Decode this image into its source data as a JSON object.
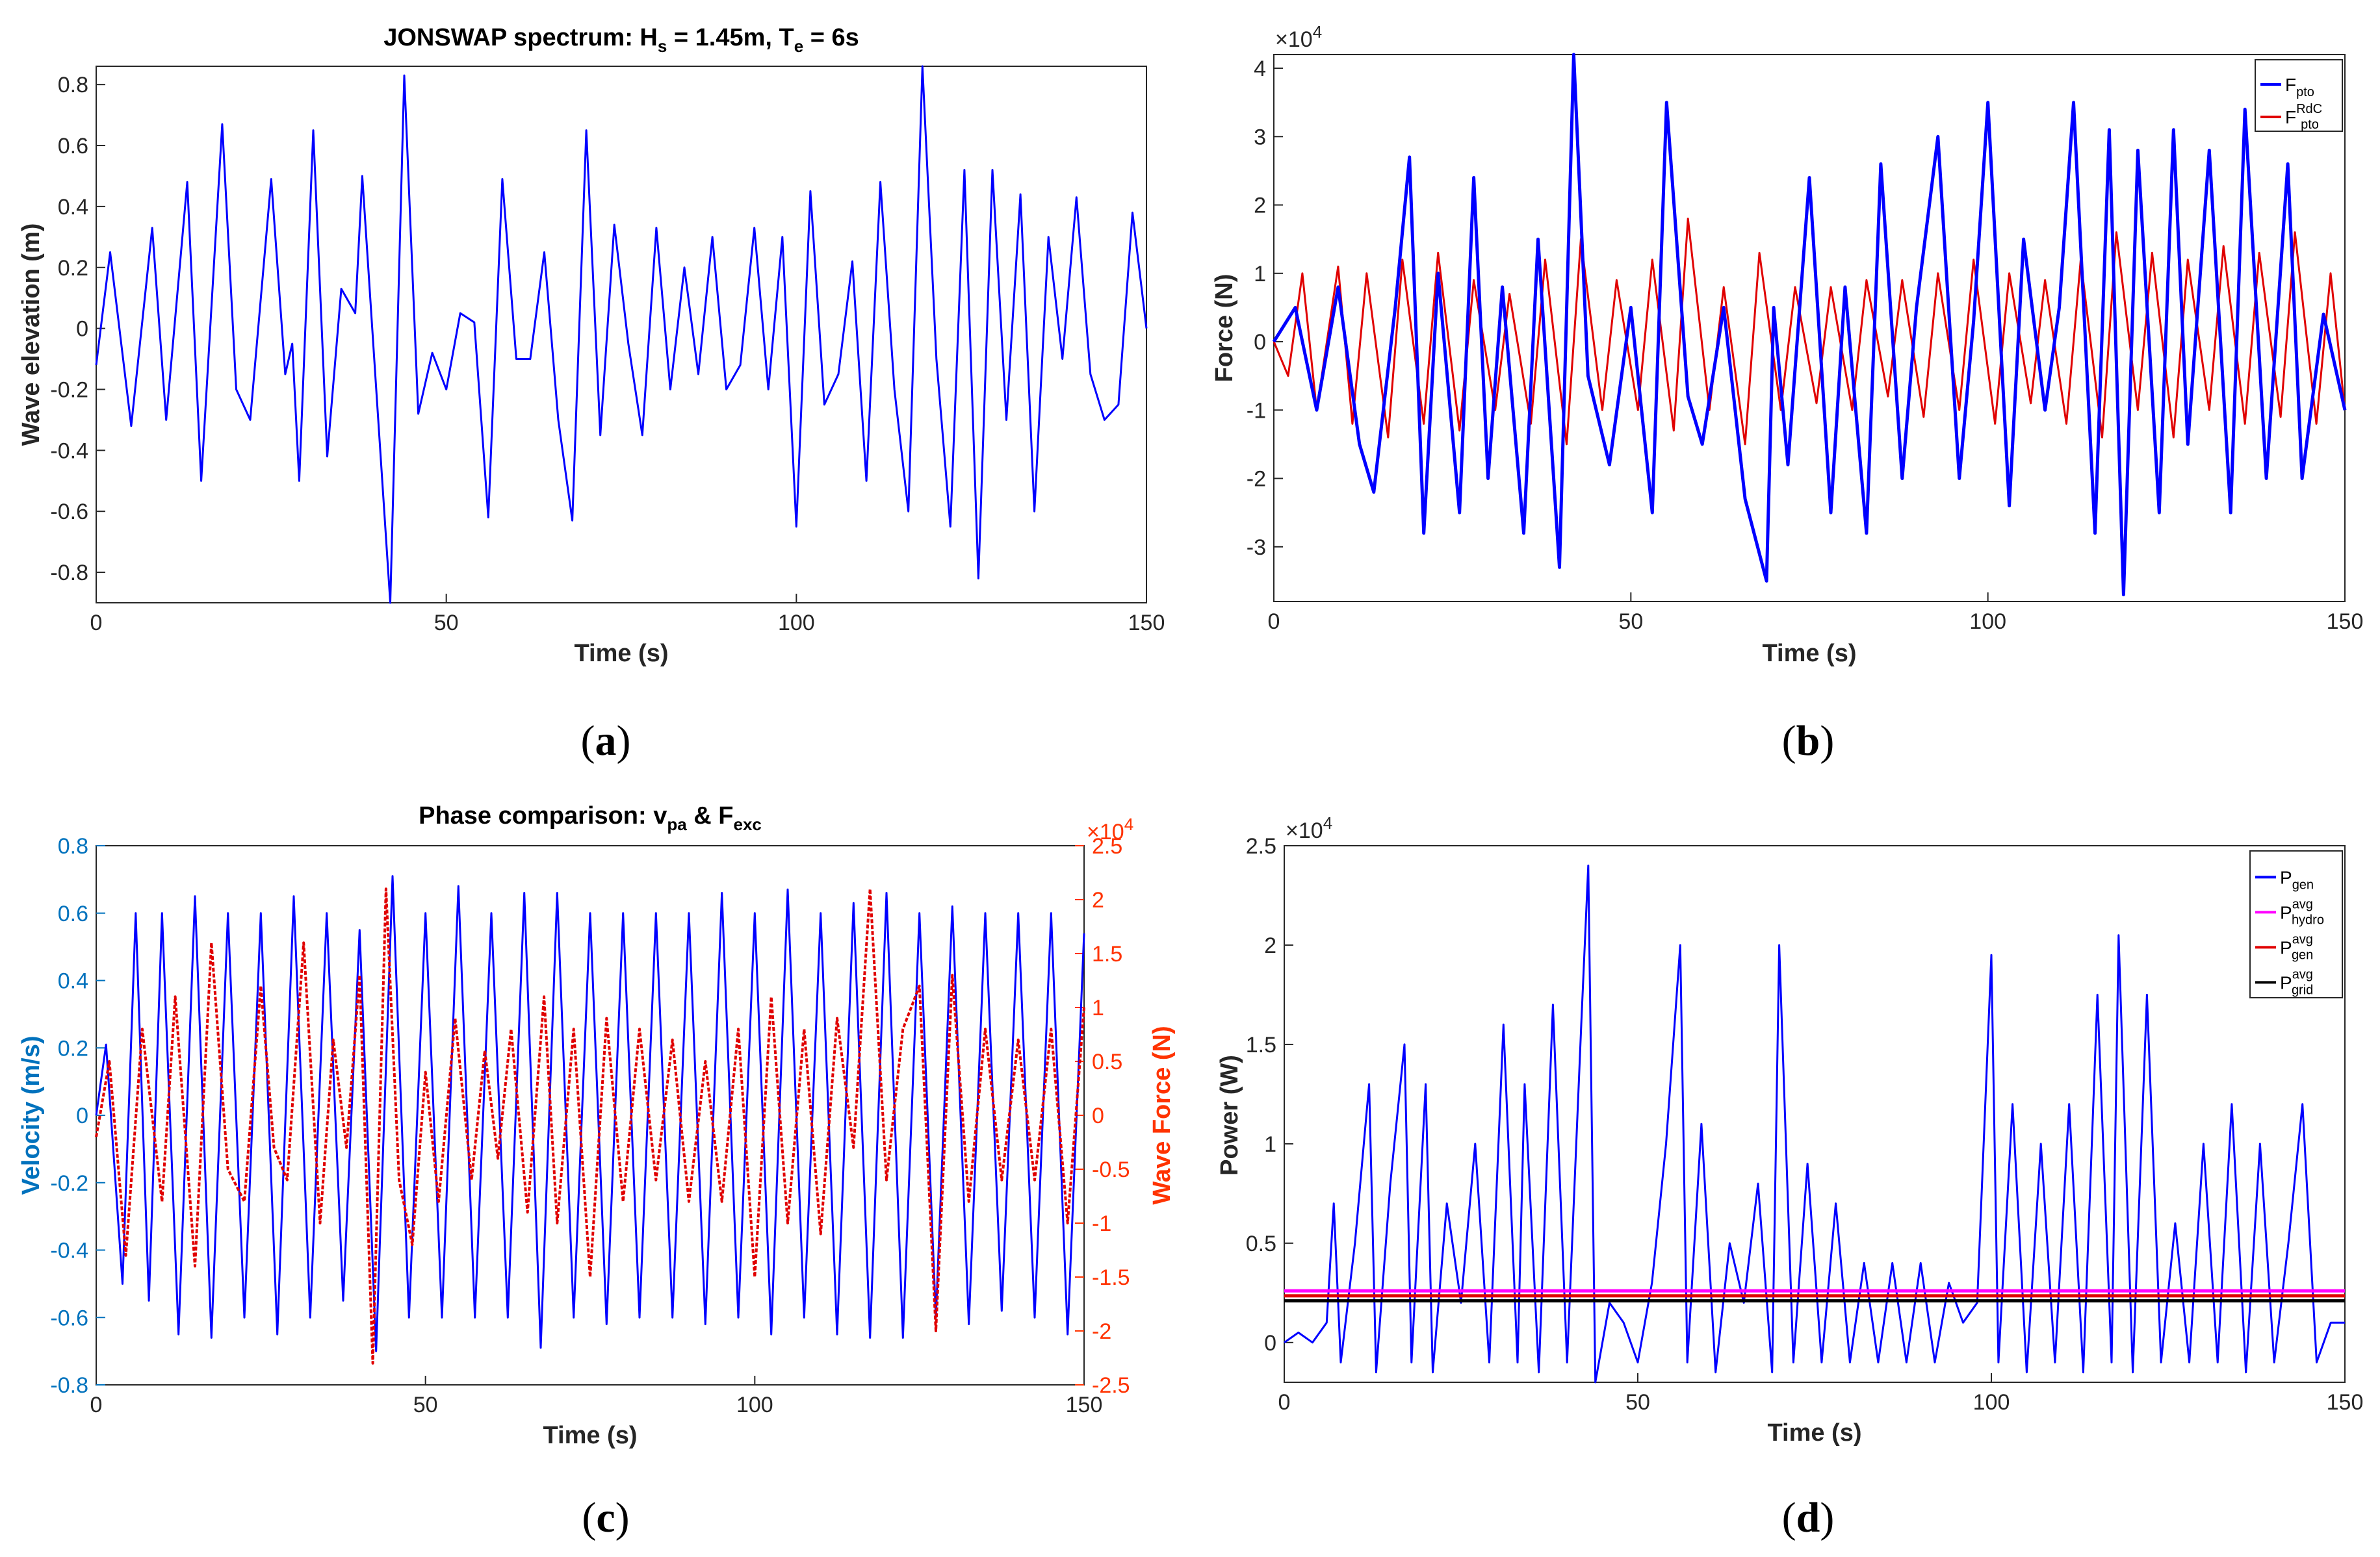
{
  "chart_data": [
    {
      "panel": "a",
      "type": "line",
      "title_parts": [
        "JONSWAP spectrum: H",
        "s",
        " = 1.45m, T",
        "e",
        " = 6s"
      ],
      "xlabel": "Time (s)",
      "ylabel": "Wave elevation (m)",
      "xlim": [
        0,
        150
      ],
      "ylim": [
        -0.9,
        0.86
      ],
      "xticks": [
        0,
        50,
        100,
        150
      ],
      "yticks": [
        -0.8,
        -0.6,
        -0.4,
        -0.2,
        0,
        0.2,
        0.4,
        0.6,
        0.8
      ],
      "ytick_labels": [
        "-0.8",
        "-0.6",
        "-0.4",
        "-0.2",
        "0",
        "0.2",
        "0.4",
        "0.6",
        "0.8"
      ],
      "series": [
        {
          "name": "wave elevation",
          "color": "#0000ff",
          "x": [
            0,
            2,
            5,
            8,
            10,
            13,
            15,
            18,
            20,
            22,
            25,
            27,
            28,
            29,
            31,
            33,
            35,
            37,
            38,
            40,
            42,
            44,
            46,
            48,
            50,
            52,
            54,
            56,
            58,
            60,
            62,
            64,
            66,
            68,
            70,
            72,
            74,
            76,
            78,
            80,
            82,
            84,
            86,
            88,
            90,
            92,
            94,
            96,
            98,
            100,
            102,
            104,
            106,
            108,
            110,
            112,
            114,
            116,
            118,
            120,
            122,
            124,
            126,
            128,
            130,
            132,
            134,
            136,
            138,
            140,
            142,
            144,
            146,
            148,
            150
          ],
          "values": [
            -0.12,
            0.25,
            -0.32,
            0.33,
            -0.3,
            0.48,
            -0.5,
            0.67,
            -0.2,
            -0.3,
            0.49,
            -0.15,
            -0.05,
            -0.5,
            0.65,
            -0.42,
            0.13,
            0.05,
            0.5,
            -0.2,
            -0.9,
            0.83,
            -0.28,
            -0.08,
            -0.2,
            0.05,
            0.02,
            -0.62,
            0.49,
            -0.1,
            -0.1,
            0.25,
            -0.3,
            -0.63,
            0.65,
            -0.35,
            0.34,
            -0.05,
            -0.35,
            0.33,
            -0.2,
            0.2,
            -0.15,
            0.3,
            -0.2,
            -0.12,
            0.33,
            -0.2,
            0.3,
            -0.65,
            0.45,
            -0.25,
            -0.15,
            0.22,
            -0.5,
            0.48,
            -0.2,
            -0.6,
            0.86,
            -0.1,
            -0.65,
            0.52,
            -0.82,
            0.52,
            -0.3,
            0.44,
            -0.6,
            0.3,
            -0.1,
            0.43,
            -0.15,
            -0.3,
            -0.25,
            0.38,
            0.0
          ]
        }
      ]
    },
    {
      "panel": "b",
      "type": "line",
      "xlabel": "Time (s)",
      "ylabel": "Force (N)",
      "exponent_label": "×10",
      "exponent_power": "4",
      "xlim": [
        0,
        150
      ],
      "ylim": [
        -3.8,
        4.2
      ],
      "xticks": [
        0,
        50,
        100,
        150
      ],
      "yticks": [
        -3,
        -2,
        -1,
        0,
        1,
        2,
        3,
        4
      ],
      "legend": [
        {
          "base": "F",
          "sub": "pto",
          "sup": "",
          "color": "#0000ff"
        },
        {
          "base": "F",
          "sub": "pto",
          "sup": "RdC",
          "color": "#e00000"
        }
      ],
      "series": [
        {
          "name": "F_pto",
          "color": "#0000ff",
          "x": [
            0,
            3,
            6,
            9,
            12,
            14,
            17,
            19,
            21,
            23,
            26,
            28,
            30,
            32,
            35,
            37,
            40,
            42,
            44,
            47,
            50,
            53,
            55,
            58,
            60,
            63,
            66,
            69,
            70,
            72,
            75,
            78,
            80,
            83,
            85,
            88,
            90,
            93,
            96,
            98,
            100,
            103,
            105,
            108,
            110,
            112,
            115,
            117,
            119,
            121,
            124,
            126,
            128,
            131,
            134,
            136,
            139,
            142,
            144,
            147,
            150
          ],
          "values": [
            0.0,
            0.5,
            -1.0,
            0.8,
            -1.5,
            -2.2,
            0.5,
            2.7,
            -2.8,
            1.0,
            -2.5,
            2.4,
            -2.0,
            0.8,
            -2.8,
            1.5,
            -3.3,
            4.2,
            -0.5,
            -1.8,
            0.5,
            -2.5,
            3.5,
            -0.8,
            -1.5,
            0.5,
            -2.3,
            -3.5,
            0.5,
            -1.8,
            2.4,
            -2.5,
            0.8,
            -2.8,
            2.6,
            -2.0,
            0.5,
            3.0,
            -2.0,
            0.3,
            3.5,
            -2.4,
            1.5,
            -1.0,
            0.5,
            3.5,
            -2.8,
            3.1,
            -3.7,
            2.8,
            -2.5,
            3.1,
            -1.5,
            2.8,
            -2.5,
            3.4,
            -2.0,
            2.6,
            -2.0,
            0.4,
            -1.0
          ]
        },
        {
          "name": "F_pto_RdC",
          "color": "#e00000",
          "x": [
            0,
            2,
            4,
            6,
            9,
            11,
            13,
            16,
            18,
            21,
            23,
            26,
            28,
            31,
            33,
            36,
            38,
            41,
            43,
            46,
            48,
            51,
            53,
            56,
            58,
            61,
            63,
            66,
            68,
            71,
            73,
            76,
            78,
            81,
            83,
            86,
            88,
            91,
            93,
            96,
            98,
            101,
            103,
            106,
            108,
            111,
            113,
            116,
            118,
            121,
            123,
            126,
            128,
            131,
            133,
            136,
            138,
            141,
            143,
            146,
            148,
            150
          ],
          "values": [
            0.0,
            -0.5,
            1.0,
            -1.0,
            1.1,
            -1.2,
            1.0,
            -1.4,
            1.2,
            -1.2,
            1.3,
            -1.3,
            0.9,
            -1.0,
            0.7,
            -1.2,
            1.2,
            -1.5,
            1.5,
            -1.0,
            0.9,
            -1.0,
            1.2,
            -1.3,
            1.8,
            -1.0,
            0.8,
            -1.5,
            1.3,
            -1.0,
            0.8,
            -0.9,
            0.8,
            -1.0,
            0.9,
            -0.8,
            0.9,
            -1.1,
            1.0,
            -1.0,
            1.2,
            -1.2,
            1.0,
            -0.9,
            0.9,
            -1.2,
            1.2,
            -1.4,
            1.6,
            -1.0,
            1.3,
            -1.4,
            1.2,
            -1.0,
            1.4,
            -1.2,
            1.3,
            -1.1,
            1.6,
            -1.2,
            1.0,
            -1.0
          ]
        }
      ]
    },
    {
      "panel": "c",
      "type": "line",
      "title_parts": [
        "Phase comparison: v",
        "pa",
        " & F",
        "exc"
      ],
      "xlabel": "Time (s)",
      "ylabel_left": "Velocity (m/s)",
      "ylabel_right": "Wave Force (N)",
      "exponent_label": "×10",
      "exponent_power": "4",
      "xlim": [
        0,
        150
      ],
      "ylim_left": [
        -0.8,
        0.8
      ],
      "ylim_right": [
        -2.5,
        2.5
      ],
      "xticks": [
        0,
        50,
        100,
        150
      ],
      "yticks_left": [
        -0.8,
        -0.6,
        -0.4,
        -0.2,
        0,
        0.2,
        0.4,
        0.6,
        0.8
      ],
      "ytick_labels_left": [
        "-0.8",
        "-0.6",
        "-0.4",
        "-0.2",
        "0",
        "0.2",
        "0.4",
        "0.6",
        "0.8"
      ],
      "yticks_right": [
        -2.5,
        -2,
        -1.5,
        -1,
        -0.5,
        0,
        0.5,
        1,
        1.5,
        2,
        2.5
      ],
      "ytick_labels_right": [
        "-2.5",
        "-2",
        "-1.5",
        "-1",
        "-0.5",
        "0",
        "0.5",
        "1",
        "1.5",
        "2",
        "2.5"
      ],
      "left_color": "#0072bd",
      "right_color": "#ff3300",
      "series": [
        {
          "name": "v_pa",
          "axis": "left",
          "color": "#0000ff",
          "x": [
            0,
            1.5,
            4,
            6,
            8,
            10,
            12.5,
            15,
            17.5,
            20,
            22.5,
            25,
            27.5,
            30,
            32.5,
            35,
            37.5,
            40,
            42.5,
            45,
            47.5,
            50,
            52.5,
            55,
            57.5,
            60,
            62.5,
            65,
            67.5,
            70,
            72.5,
            75,
            77.5,
            80,
            82.5,
            85,
            87.5,
            90,
            92.5,
            95,
            97.5,
            100,
            102.5,
            105,
            107.5,
            110,
            112.5,
            115,
            117.5,
            120,
            122.5,
            125,
            127.5,
            130,
            132.5,
            135,
            137.5,
            140,
            142.5,
            145,
            147.5,
            150
          ],
          "values": [
            0.0,
            0.21,
            -0.5,
            0.6,
            -0.55,
            0.6,
            -0.65,
            0.65,
            -0.66,
            0.6,
            -0.6,
            0.6,
            -0.65,
            0.65,
            -0.6,
            0.6,
            -0.55,
            0.55,
            -0.7,
            0.71,
            -0.6,
            0.6,
            -0.6,
            0.68,
            -0.6,
            0.6,
            -0.6,
            0.66,
            -0.69,
            0.66,
            -0.6,
            0.6,
            -0.62,
            0.6,
            -0.6,
            0.6,
            -0.6,
            0.6,
            -0.62,
            0.66,
            -0.6,
            0.6,
            -0.65,
            0.67,
            -0.6,
            0.6,
            -0.65,
            0.63,
            -0.66,
            0.66,
            -0.66,
            0.6,
            -0.6,
            0.62,
            -0.62,
            0.6,
            -0.58,
            0.6,
            -0.6,
            0.6,
            -0.65,
            0.54
          ]
        },
        {
          "name": "F_exc",
          "axis": "right",
          "color": "#e00000",
          "x": [
            0,
            2,
            4.5,
            7,
            10,
            12,
            15,
            17.5,
            20,
            22.5,
            25,
            27,
            29,
            31.5,
            34,
            36,
            38,
            40,
            42,
            44,
            46,
            48,
            50,
            52,
            54.5,
            57,
            59,
            61,
            63,
            65.5,
            68,
            70,
            72.5,
            75,
            77.5,
            80,
            82.5,
            85,
            87.5,
            90,
            92.5,
            95,
            97.5,
            100,
            102.5,
            105,
            107.5,
            110,
            112.5,
            115,
            117.5,
            120,
            122.5,
            125,
            127.5,
            130,
            132.5,
            135,
            137.5,
            140,
            142.5,
            145,
            147.5,
            150
          ],
          "values": [
            -0.2,
            0.5,
            -1.3,
            0.8,
            -0.8,
            1.1,
            -1.4,
            1.6,
            -0.5,
            -0.8,
            1.2,
            -0.3,
            -0.6,
            1.6,
            -1.0,
            0.7,
            -0.3,
            1.3,
            -2.3,
            2.1,
            -0.6,
            -1.2,
            0.4,
            -0.8,
            0.9,
            -0.6,
            0.6,
            -0.4,
            0.8,
            -0.9,
            1.1,
            -1.0,
            0.8,
            -1.5,
            0.9,
            -0.8,
            0.8,
            -0.6,
            0.7,
            -0.8,
            0.5,
            -0.8,
            0.8,
            -1.5,
            1.1,
            -1.0,
            0.8,
            -1.1,
            0.9,
            -0.3,
            2.1,
            -0.6,
            0.8,
            1.2,
            -2.0,
            1.3,
            -0.8,
            0.8,
            -0.6,
            0.7,
            -0.6,
            0.8,
            -1.0,
            1.0
          ]
        }
      ]
    },
    {
      "panel": "d",
      "type": "line",
      "xlabel": "Time (s)",
      "ylabel": "Power (W)",
      "exponent_label": "×10",
      "exponent_power": "4",
      "xlim": [
        0,
        150
      ],
      "ylim": [
        -0.2,
        2.5
      ],
      "xticks": [
        0,
        50,
        100,
        150
      ],
      "yticks": [
        0,
        0.5,
        1,
        1.5,
        2,
        2.5
      ],
      "ytick_labels": [
        "0",
        "0.5",
        "1",
        "1.5",
        "2",
        "2.5"
      ],
      "legend": [
        {
          "base": "P",
          "sub": "gen",
          "sup": "",
          "color": "#0000ff"
        },
        {
          "base": "P",
          "sub": "hydro",
          "sup": "avg",
          "color": "#ff00ff"
        },
        {
          "base": "P",
          "sub": "gen",
          "sup": "avg",
          "color": "#e00000"
        },
        {
          "base": "P",
          "sub": "grid",
          "sup": "avg",
          "color": "#000000"
        }
      ],
      "hlines": [
        {
          "name": "P_hydro_avg",
          "value": 0.26,
          "color": "#ff00ff"
        },
        {
          "name": "P_gen_avg",
          "value": 0.235,
          "color": "#e00000"
        },
        {
          "name": "P_grid_avg",
          "value": 0.21,
          "color": "#000000"
        }
      ],
      "series": [
        {
          "name": "P_gen",
          "color": "#0000ff",
          "x": [
            0,
            2,
            4,
            6,
            7,
            8,
            10,
            12,
            13,
            15,
            17,
            18,
            20,
            21,
            23,
            25,
            27,
            29,
            31,
            33,
            34,
            36,
            38,
            40,
            42,
            43,
            44,
            46,
            48,
            50,
            52,
            54,
            56,
            57,
            59,
            61,
            63,
            65,
            67,
            69,
            70,
            72,
            74,
            76,
            78,
            80,
            82,
            84,
            86,
            88,
            90,
            92,
            94,
            96,
            98,
            100,
            101,
            103,
            105,
            107,
            109,
            111,
            113,
            115,
            117,
            118,
            120,
            122,
            124,
            126,
            128,
            130,
            132,
            134,
            136,
            138,
            140,
            142,
            144,
            146,
            148,
            150
          ],
          "values": [
            0.0,
            0.05,
            0.0,
            0.1,
            0.7,
            -0.1,
            0.5,
            1.3,
            -0.15,
            0.8,
            1.5,
            -0.1,
            1.3,
            -0.15,
            0.7,
            0.2,
            1.0,
            -0.1,
            1.6,
            -0.1,
            1.3,
            -0.15,
            1.7,
            -0.1,
            1.6,
            2.4,
            -0.2,
            0.2,
            0.1,
            -0.1,
            0.3,
            1.0,
            2.0,
            -0.1,
            1.1,
            -0.15,
            0.5,
            0.2,
            0.8,
            -0.15,
            2.0,
            -0.1,
            0.9,
            -0.1,
            0.7,
            -0.1,
            0.4,
            -0.1,
            0.4,
            -0.1,
            0.4,
            -0.1,
            0.3,
            0.1,
            0.2,
            1.95,
            -0.1,
            1.2,
            -0.15,
            1.0,
            -0.1,
            1.2,
            -0.15,
            1.75,
            -0.1,
            2.05,
            -0.15,
            1.75,
            -0.1,
            0.6,
            -0.1,
            1.0,
            -0.1,
            1.2,
            -0.15,
            1.0,
            -0.1,
            0.5,
            1.2,
            -0.1,
            0.1,
            0.1
          ]
        }
      ]
    }
  ],
  "panel_labels": [
    {
      "open": "(",
      "letter": "a",
      "close": ")"
    },
    {
      "open": "(",
      "letter": "b",
      "close": ")"
    },
    {
      "open": "(",
      "letter": "c",
      "close": ")"
    },
    {
      "open": "(",
      "letter": "d",
      "close": ")"
    }
  ]
}
